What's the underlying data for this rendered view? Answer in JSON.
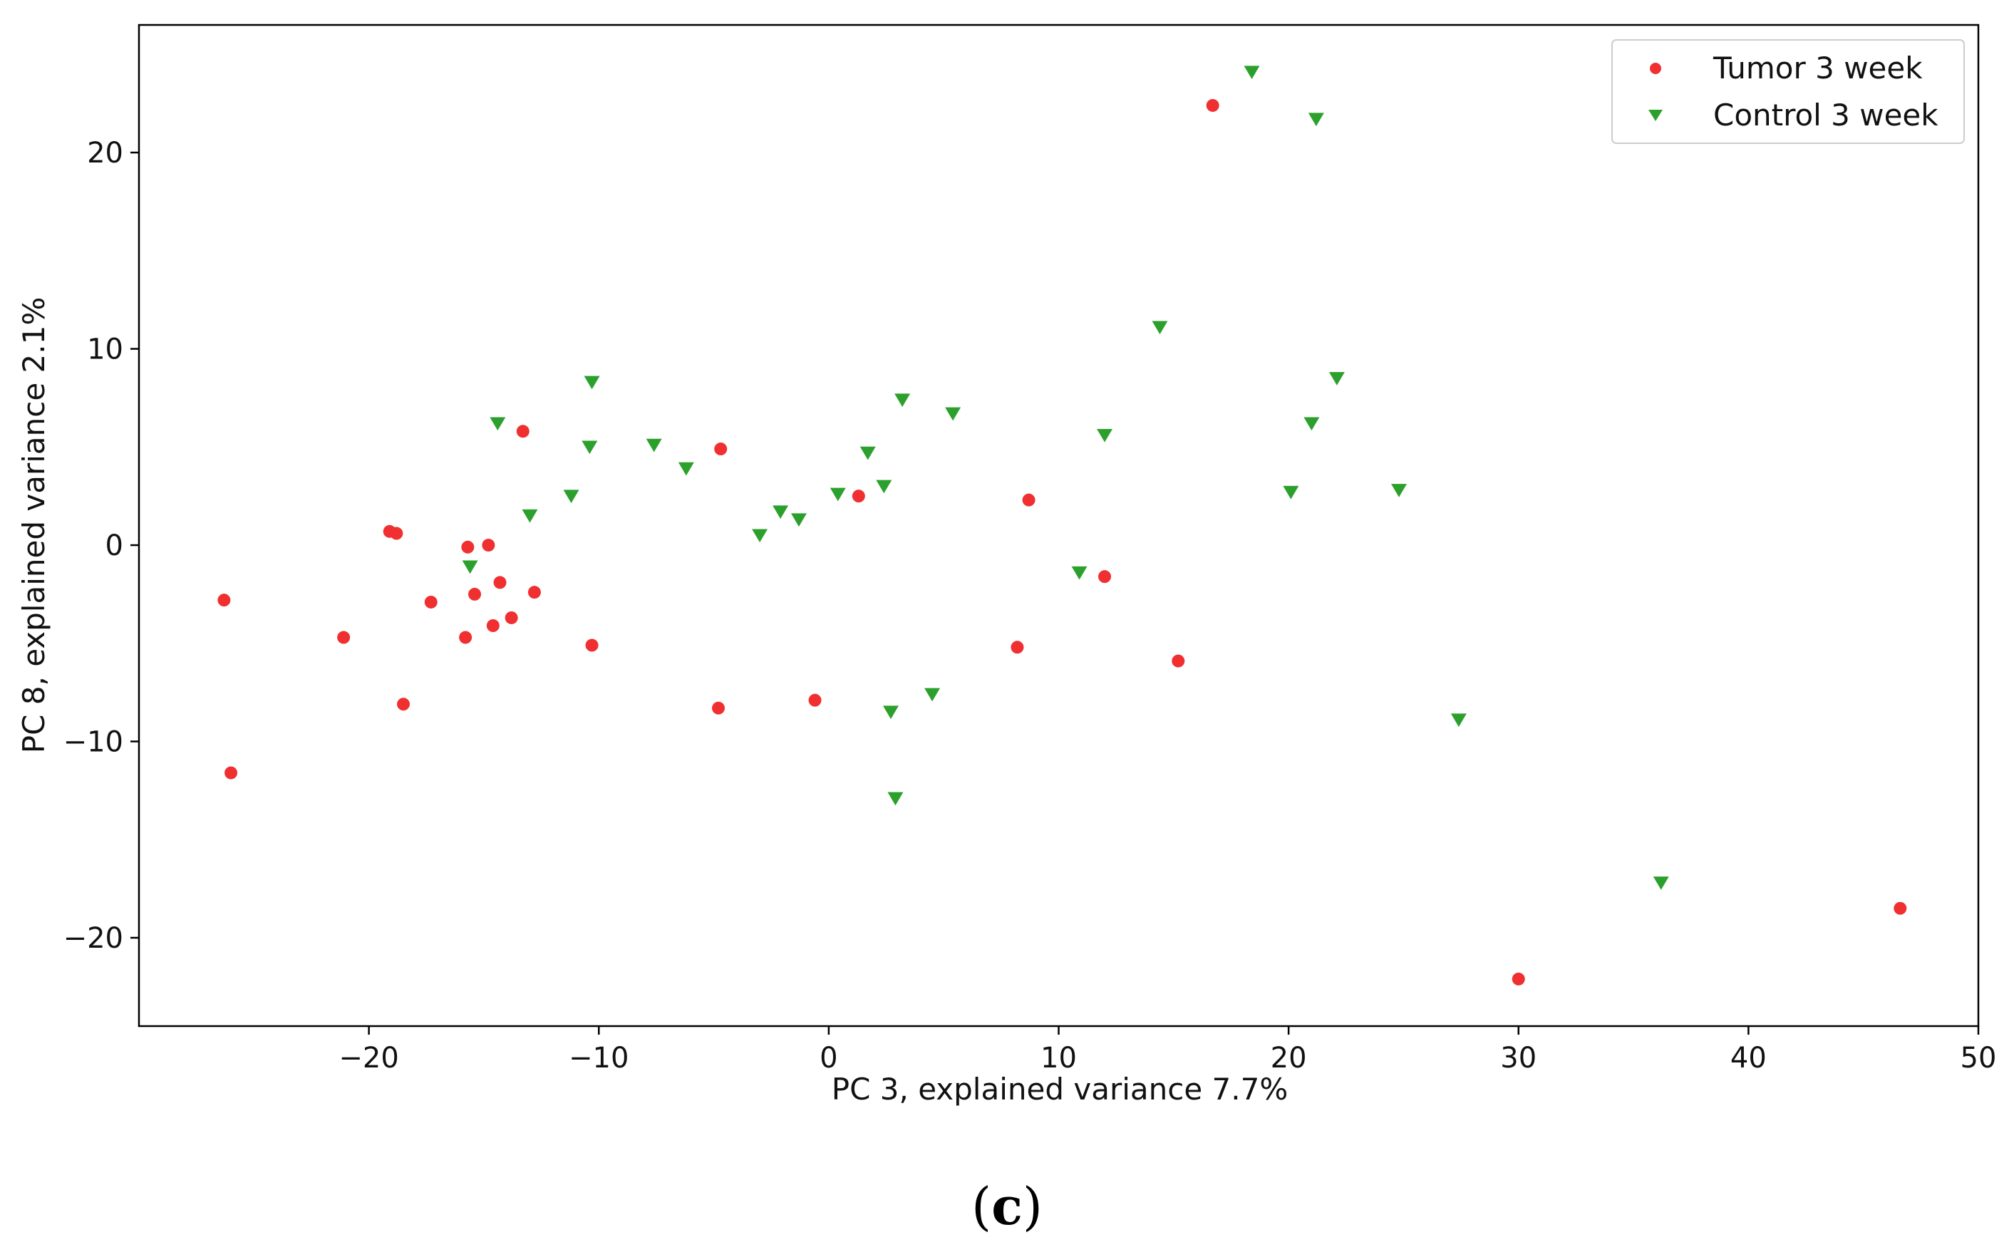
{
  "chart_data": {
    "type": "scatter",
    "title": "",
    "xlabel": "PC 3, explained variance 7.7%",
    "ylabel": "PC 8, explained variance 2.1%",
    "xlim": [
      -30,
      50
    ],
    "ylim": [
      -24.5,
      26.5
    ],
    "x_ticks": [
      -20,
      -10,
      0,
      10,
      20,
      30,
      40,
      50
    ],
    "y_ticks": [
      -20,
      -10,
      0,
      10,
      20
    ],
    "grid": false,
    "legend_position": "top-right",
    "series": [
      {
        "name": "Tumor 3 week",
        "color": "#f03030",
        "marker": "circle",
        "points": [
          [
            -26.3,
            -2.8
          ],
          [
            -26.0,
            -11.6
          ],
          [
            -21.1,
            -4.7
          ],
          [
            -19.1,
            0.7
          ],
          [
            -18.8,
            0.6
          ],
          [
            -18.5,
            -8.1
          ],
          [
            -17.3,
            -2.9
          ],
          [
            -15.8,
            -4.7
          ],
          [
            -15.7,
            -0.1
          ],
          [
            -15.4,
            -2.5
          ],
          [
            -14.8,
            0.0
          ],
          [
            -14.6,
            -4.1
          ],
          [
            -14.3,
            -1.9
          ],
          [
            -13.8,
            -3.7
          ],
          [
            -13.3,
            5.8
          ],
          [
            -12.8,
            -2.4
          ],
          [
            -10.3,
            -5.1
          ],
          [
            -4.8,
            -8.3
          ],
          [
            -4.7,
            4.9
          ],
          [
            -0.6,
            -7.9
          ],
          [
            1.3,
            2.5
          ],
          [
            8.2,
            -5.2
          ],
          [
            8.7,
            2.3
          ],
          [
            12.0,
            -1.6
          ],
          [
            15.2,
            -5.9
          ],
          [
            16.7,
            22.4
          ],
          [
            30.0,
            -22.1
          ],
          [
            46.6,
            -18.5
          ]
        ]
      },
      {
        "name": "Control 3 week",
        "color": "#2ca02c",
        "marker": "triangle-down",
        "points": [
          [
            -15.6,
            -1.1
          ],
          [
            -14.4,
            6.2
          ],
          [
            -13.0,
            1.5
          ],
          [
            -11.2,
            2.5
          ],
          [
            -10.4,
            5.0
          ],
          [
            -10.3,
            8.3
          ],
          [
            -7.6,
            5.1
          ],
          [
            -6.2,
            3.9
          ],
          [
            -3.0,
            0.5
          ],
          [
            -2.1,
            1.7
          ],
          [
            -1.3,
            1.3
          ],
          [
            0.4,
            2.6
          ],
          [
            1.7,
            4.7
          ],
          [
            2.4,
            3.0
          ],
          [
            2.7,
            -8.5
          ],
          [
            2.9,
            -12.9
          ],
          [
            3.2,
            7.4
          ],
          [
            4.5,
            -7.6
          ],
          [
            5.4,
            6.7
          ],
          [
            10.9,
            -1.4
          ],
          [
            12.0,
            5.6
          ],
          [
            14.4,
            11.1
          ],
          [
            18.4,
            24.1
          ],
          [
            20.1,
            2.7
          ],
          [
            21.0,
            6.2
          ],
          [
            21.2,
            21.7
          ],
          [
            22.1,
            8.5
          ],
          [
            24.8,
            2.8
          ],
          [
            27.4,
            -8.9
          ],
          [
            36.2,
            -17.2
          ]
        ]
      }
    ]
  },
  "panel_label": {
    "open": "(",
    "letter": "c",
    "close": ")"
  }
}
